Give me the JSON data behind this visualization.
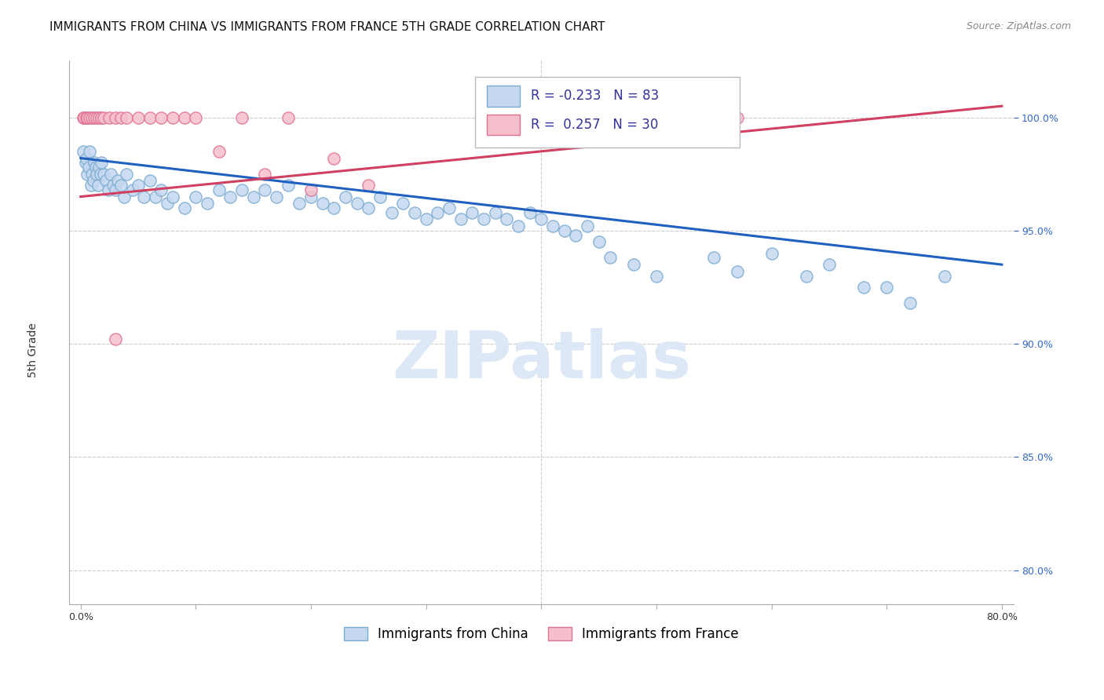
{
  "title": "IMMIGRANTS FROM CHINA VS IMMIGRANTS FROM FRANCE 5TH GRADE CORRELATION CHART",
  "source": "Source: ZipAtlas.com",
  "ylabel": "5th Grade",
  "x_ticks": [
    0.0,
    10.0,
    20.0,
    30.0,
    40.0,
    50.0,
    60.0,
    70.0,
    80.0
  ],
  "y_ticks": [
    80.0,
    85.0,
    90.0,
    95.0,
    100.0
  ],
  "y_tick_labels": [
    "80.0%",
    "85.0%",
    "90.0%",
    "95.0%",
    "100.0%"
  ],
  "xlim": [
    -1.0,
    81.0
  ],
  "ylim": [
    78.5,
    102.5
  ],
  "china_color": "#c5d8f0",
  "china_edge_color": "#7aaad0",
  "france_color": "#f5c0cc",
  "france_edge_color": "#e07090",
  "trend_china_color": "#2060c0",
  "trend_france_color": "#d04060",
  "legend_china_label": "Immigrants from China",
  "legend_france_label": "Immigrants from France",
  "china_R": "-0.233",
  "china_N": "83",
  "france_R": "0.257",
  "france_N": "30",
  "china_scatter_x": [
    0.2,
    0.4,
    0.5,
    0.6,
    0.7,
    0.8,
    0.9,
    1.0,
    1.1,
    1.2,
    1.3,
    1.4,
    1.5,
    1.6,
    1.7,
    1.8,
    2.0,
    2.2,
    2.4,
    2.6,
    2.8,
    3.0,
    3.2,
    3.5,
    3.8,
    4.0,
    4.5,
    5.0,
    5.5,
    6.0,
    6.5,
    7.0,
    7.5,
    8.0,
    9.0,
    10.0,
    11.0,
    12.0,
    13.0,
    14.0,
    15.0,
    16.0,
    17.0,
    18.0,
    19.0,
    20.0,
    21.0,
    22.0,
    23.0,
    24.0,
    25.0,
    26.0,
    27.0,
    28.0,
    29.0,
    30.0,
    31.0,
    32.0,
    33.0,
    34.0,
    35.0,
    36.0,
    37.0,
    38.0,
    39.0,
    40.0,
    41.0,
    42.0,
    43.0,
    44.0,
    45.0,
    46.0,
    48.0,
    50.0,
    55.0,
    57.0,
    60.0,
    63.0,
    65.0,
    68.0,
    70.0,
    72.0,
    75.0
  ],
  "china_scatter_y": [
    98.5,
    98.0,
    98.2,
    97.5,
    97.8,
    98.5,
    97.0,
    97.5,
    97.2,
    98.0,
    97.8,
    97.5,
    97.0,
    97.8,
    97.5,
    98.0,
    97.5,
    97.2,
    96.8,
    97.5,
    97.0,
    96.8,
    97.2,
    97.0,
    96.5,
    97.5,
    96.8,
    97.0,
    96.5,
    97.2,
    96.5,
    96.8,
    96.2,
    96.5,
    96.0,
    96.5,
    96.2,
    96.8,
    96.5,
    96.8,
    96.5,
    96.8,
    96.5,
    97.0,
    96.2,
    96.5,
    96.2,
    96.0,
    96.5,
    96.2,
    96.0,
    96.5,
    95.8,
    96.2,
    95.8,
    95.5,
    95.8,
    96.0,
    95.5,
    95.8,
    95.5,
    95.8,
    95.5,
    95.2,
    95.8,
    95.5,
    95.2,
    95.0,
    94.8,
    95.2,
    94.5,
    93.8,
    93.5,
    93.0,
    93.8,
    93.2,
    94.0,
    93.0,
    93.5,
    92.5,
    92.5,
    91.8,
    93.0
  ],
  "france_scatter_x": [
    0.2,
    0.3,
    0.5,
    0.6,
    0.8,
    1.0,
    1.2,
    1.4,
    1.6,
    1.8,
    2.0,
    2.5,
    3.0,
    3.5,
    4.0,
    5.0,
    6.0,
    7.0,
    8.0,
    9.0,
    10.0,
    12.0,
    14.0,
    16.0,
    18.0,
    20.0,
    22.0,
    25.0,
    45.0,
    57.0
  ],
  "france_scatter_y": [
    100.0,
    100.0,
    100.0,
    100.0,
    100.0,
    100.0,
    100.0,
    100.0,
    100.0,
    100.0,
    100.0,
    100.0,
    100.0,
    100.0,
    100.0,
    100.0,
    100.0,
    100.0,
    100.0,
    100.0,
    100.0,
    98.5,
    100.0,
    97.5,
    100.0,
    96.8,
    98.2,
    97.0,
    100.0,
    100.0
  ],
  "china_trend_x": [
    0.0,
    80.0
  ],
  "china_trend_y": [
    98.2,
    93.5
  ],
  "france_trend_x": [
    0.0,
    80.0
  ],
  "france_trend_y": [
    96.5,
    100.5
  ],
  "background_color": "#ffffff",
  "grid_color": "#cccccc",
  "watermark_text": "ZIPatlas",
  "watermark_color": "#dce8f5",
  "title_fontsize": 11,
  "axis_label_fontsize": 10,
  "tick_fontsize": 9,
  "legend_fontsize": 12,
  "marker_size": 120,
  "france_outlier_x": 3.0,
  "france_outlier_y": 90.2
}
